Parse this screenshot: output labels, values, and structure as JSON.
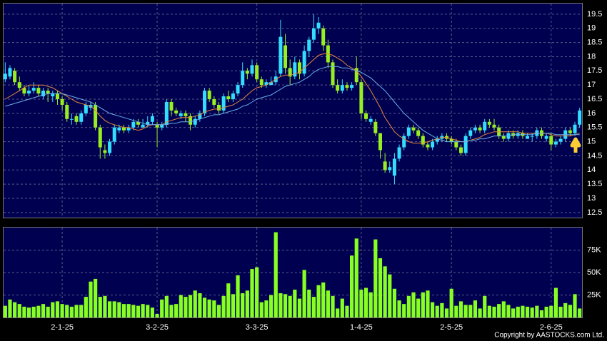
{
  "chart_data": [
    {
      "type": "candlestick",
      "up_color": "#33ddff",
      "down_color": "#99ee22",
      "grid": true,
      "ylim": [
        12.32,
        19.9
      ],
      "yticks": [
        12.5,
        13,
        13.5,
        14,
        14.5,
        15,
        15.5,
        16,
        16.5,
        17,
        17.5,
        18,
        18.5,
        19,
        19.5
      ],
      "candles": [
        [
          17.2,
          17.8,
          17.1,
          17.4
        ],
        [
          17.3,
          17.7,
          17.2,
          17.6
        ],
        [
          17.5,
          17.6,
          17.0,
          17.1
        ],
        [
          17.1,
          17.3,
          16.8,
          16.9
        ],
        [
          16.9,
          17.0,
          16.6,
          16.7
        ],
        [
          16.7,
          17.0,
          16.6,
          16.8
        ],
        [
          16.8,
          17.1,
          16.7,
          16.9
        ],
        [
          16.9,
          17.0,
          16.6,
          16.7
        ],
        [
          16.6,
          16.9,
          16.5,
          16.8
        ],
        [
          16.8,
          16.9,
          16.4,
          16.7
        ],
        [
          16.6,
          16.8,
          16.4,
          16.7
        ],
        [
          16.7,
          16.8,
          16.3,
          16.5
        ],
        [
          16.5,
          16.6,
          16.1,
          16.3
        ],
        [
          16.3,
          16.4,
          15.7,
          15.8
        ],
        [
          15.8,
          16.0,
          15.6,
          15.8
        ],
        [
          15.9,
          16.0,
          15.6,
          15.7
        ],
        [
          15.7,
          16.1,
          15.6,
          16.0
        ],
        [
          16.0,
          16.4,
          15.9,
          16.3
        ],
        [
          16.2,
          16.4,
          16.1,
          16.3
        ],
        [
          16.3,
          16.4,
          15.4,
          15.5
        ],
        [
          15.5,
          15.6,
          14.4,
          14.8
        ],
        [
          14.7,
          14.9,
          14.4,
          14.6
        ],
        [
          14.6,
          15.1,
          14.5,
          15.0
        ],
        [
          15.0,
          15.6,
          14.9,
          15.5
        ],
        [
          15.4,
          15.6,
          15.3,
          15.5
        ],
        [
          15.5,
          15.6,
          15.3,
          15.4
        ],
        [
          15.4,
          15.6,
          15.3,
          15.5
        ],
        [
          15.5,
          15.8,
          15.4,
          15.7
        ],
        [
          15.7,
          15.8,
          15.5,
          15.6
        ],
        [
          15.5,
          15.8,
          15.5,
          15.6
        ],
        [
          15.6,
          15.9,
          15.5,
          15.7
        ],
        [
          15.7,
          16.0,
          15.6,
          15.9
        ],
        [
          15.6,
          15.7,
          14.8,
          15.5
        ],
        [
          15.5,
          15.7,
          15.4,
          15.6
        ],
        [
          15.6,
          16.5,
          15.5,
          16.4
        ],
        [
          16.4,
          16.5,
          15.9,
          16.1
        ],
        [
          16.1,
          16.2,
          15.9,
          16.0
        ],
        [
          15.9,
          16.1,
          15.8,
          16.0
        ],
        [
          16.0,
          16.1,
          15.7,
          15.9
        ],
        [
          15.9,
          16.0,
          15.4,
          15.6
        ],
        [
          15.6,
          15.9,
          15.5,
          15.8
        ],
        [
          15.8,
          16.1,
          15.7,
          16.0
        ],
        [
          16.0,
          16.9,
          15.9,
          16.8
        ],
        [
          16.8,
          16.9,
          16.4,
          16.5
        ],
        [
          16.5,
          16.6,
          16.2,
          16.3
        ],
        [
          16.3,
          16.4,
          16.0,
          16.1
        ],
        [
          16.1,
          16.7,
          16.0,
          16.6
        ],
        [
          16.6,
          16.8,
          16.4,
          16.5
        ],
        [
          16.5,
          16.8,
          16.4,
          16.7
        ],
        [
          16.7,
          17.1,
          16.6,
          17.0
        ],
        [
          17.0,
          17.8,
          16.9,
          17.5
        ],
        [
          17.5,
          17.6,
          17.2,
          17.4
        ],
        [
          17.4,
          17.9,
          17.3,
          17.7
        ],
        [
          17.7,
          17.8,
          17.1,
          17.2
        ],
        [
          17.2,
          17.3,
          16.9,
          17.0
        ],
        [
          17.0,
          17.2,
          16.9,
          17.1
        ],
        [
          17.0,
          17.3,
          17.0,
          17.1
        ],
        [
          17.1,
          17.5,
          17.0,
          17.3
        ],
        [
          17.4,
          19.3,
          17.3,
          18.7
        ],
        [
          18.4,
          18.8,
          17.4,
          17.6
        ],
        [
          17.6,
          17.9,
          17.0,
          17.3
        ],
        [
          17.3,
          18.0,
          17.2,
          17.8
        ],
        [
          17.8,
          17.9,
          17.2,
          17.4
        ],
        [
          17.4,
          18.4,
          17.3,
          18.2
        ],
        [
          18.2,
          18.7,
          18.0,
          18.6
        ],
        [
          18.6,
          19.5,
          18.5,
          19.0
        ],
        [
          19.0,
          19.4,
          18.8,
          19.2
        ],
        [
          19.0,
          19.1,
          18.2,
          18.4
        ],
        [
          18.4,
          18.6,
          17.6,
          17.8
        ],
        [
          17.8,
          17.9,
          16.9,
          17.0
        ],
        [
          17.0,
          17.2,
          16.7,
          16.8
        ],
        [
          16.8,
          17.2,
          16.7,
          17.0
        ],
        [
          17.0,
          17.1,
          16.8,
          16.9
        ],
        [
          16.9,
          17.1,
          16.8,
          17.0
        ],
        [
          17.6,
          18.0,
          17.0,
          17.1
        ],
        [
          17.1,
          17.2,
          15.8,
          16.0
        ],
        [
          16.0,
          16.1,
          15.7,
          15.8
        ],
        [
          15.7,
          15.9,
          15.6,
          15.8
        ],
        [
          15.7,
          15.8,
          15.2,
          15.3
        ],
        [
          15.3,
          15.3,
          14.4,
          14.7
        ],
        [
          14.3,
          14.6,
          13.9,
          14.0
        ],
        [
          14.0,
          14.3,
          13.9,
          14.1
        ],
        [
          13.8,
          14.6,
          13.5,
          14.4
        ],
        [
          14.4,
          14.9,
          14.3,
          14.8
        ],
        [
          14.8,
          15.3,
          14.7,
          15.2
        ],
        [
          15.2,
          15.6,
          15.1,
          15.5
        ],
        [
          15.5,
          15.6,
          15.3,
          15.4
        ],
        [
          15.4,
          15.5,
          15.1,
          15.2
        ],
        [
          15.2,
          15.3,
          14.8,
          14.9
        ],
        [
          14.9,
          15.0,
          14.7,
          14.8
        ],
        [
          14.8,
          15.1,
          14.7,
          15.0
        ],
        [
          15.0,
          15.2,
          14.9,
          15.1
        ],
        [
          15.1,
          15.3,
          15.0,
          15.2
        ],
        [
          15.2,
          15.3,
          15.0,
          15.1
        ],
        [
          15.1,
          15.2,
          14.9,
          15.0
        ],
        [
          15.0,
          15.1,
          14.7,
          14.8
        ],
        [
          14.8,
          14.9,
          14.5,
          14.6
        ],
        [
          14.6,
          15.3,
          14.5,
          15.2
        ],
        [
          15.2,
          15.5,
          15.1,
          15.4
        ],
        [
          15.4,
          15.6,
          15.3,
          15.5
        ],
        [
          15.5,
          15.6,
          15.3,
          15.4
        ],
        [
          15.4,
          15.8,
          15.3,
          15.7
        ],
        [
          15.7,
          15.8,
          15.5,
          15.6
        ],
        [
          15.6,
          15.8,
          15.4,
          15.5
        ],
        [
          15.5,
          15.6,
          15.1,
          15.2
        ],
        [
          15.2,
          15.3,
          15.0,
          15.1
        ],
        [
          15.1,
          15.4,
          15.0,
          15.3
        ],
        [
          15.3,
          15.4,
          15.1,
          15.2
        ],
        [
          15.2,
          15.4,
          15.1,
          15.3
        ],
        [
          15.3,
          15.4,
          15.1,
          15.2
        ],
        [
          15.1,
          15.3,
          15.1,
          15.2
        ],
        [
          15.2,
          15.3,
          15.0,
          15.2
        ],
        [
          15.2,
          15.5,
          15.1,
          15.4
        ],
        [
          15.4,
          15.5,
          15.1,
          15.2
        ],
        [
          15.1,
          15.3,
          15.0,
          15.2
        ],
        [
          15.2,
          15.3,
          14.7,
          14.9
        ],
        [
          14.9,
          15.1,
          14.8,
          15.0
        ],
        [
          15.0,
          15.2,
          14.9,
          15.1
        ],
        [
          15.1,
          15.5,
          15.0,
          15.4
        ],
        [
          15.4,
          15.5,
          15.2,
          15.3
        ],
        [
          15.3,
          15.7,
          15.2,
          15.6
        ],
        [
          15.6,
          16.2,
          15.5,
          16.1
        ]
      ],
      "series": [
        {
          "color": "#e8883a",
          "values": [
            16.5,
            16.6,
            16.7,
            16.8,
            16.9,
            17.0,
            17.0,
            17.0,
            17.0,
            16.95,
            16.9,
            16.8,
            16.7,
            16.6,
            16.5,
            16.4,
            16.35,
            16.3,
            16.25,
            16.1,
            15.9,
            15.75,
            15.65,
            15.6,
            15.55,
            15.5,
            15.5,
            15.45,
            15.4,
            15.45,
            15.55,
            15.6,
            15.6,
            15.6,
            15.7,
            15.75,
            15.8,
            15.85,
            15.85,
            15.85,
            15.9,
            15.95,
            16.05,
            16.1,
            16.15,
            16.15,
            16.2,
            16.25,
            16.3,
            16.4,
            16.5,
            16.65,
            16.8,
            16.9,
            16.95,
            17.0,
            17.1,
            17.2,
            17.3,
            17.35,
            17.35,
            17.4,
            17.45,
            17.6,
            17.75,
            17.9,
            18.05,
            18.1,
            18.1,
            18.05,
            17.95,
            17.85,
            17.7,
            17.6,
            17.5,
            17.3,
            17.05,
            16.8,
            16.5,
            16.2,
            15.85,
            15.6,
            15.35,
            15.2,
            15.1,
            15.0,
            14.95,
            14.95,
            14.95,
            15.0,
            15.05,
            15.1,
            15.15,
            15.15,
            15.1,
            15.05,
            15.0,
            15.0,
            15.05,
            15.1,
            15.15,
            15.25,
            15.3,
            15.35,
            15.35,
            15.35,
            15.35,
            15.35,
            15.35,
            15.3,
            15.3,
            15.3,
            15.3,
            15.3,
            15.3,
            15.25,
            15.2,
            15.2,
            15.2,
            15.2,
            15.25,
            15.3
          ]
        },
        {
          "color": "#6aaee8",
          "values": [
            16.25,
            16.3,
            16.35,
            16.4,
            16.45,
            16.5,
            16.55,
            16.6,
            16.65,
            16.7,
            16.7,
            16.7,
            16.7,
            16.65,
            16.6,
            16.55,
            16.5,
            16.45,
            16.4,
            16.3,
            16.2,
            16.1,
            16.0,
            15.95,
            15.9,
            15.85,
            15.8,
            15.75,
            15.7,
            15.65,
            15.6,
            15.6,
            15.6,
            15.6,
            15.6,
            15.65,
            15.65,
            15.7,
            15.7,
            15.7,
            15.75,
            15.8,
            15.85,
            15.9,
            15.95,
            15.95,
            16.0,
            16.05,
            16.1,
            16.15,
            16.25,
            16.3,
            16.4,
            16.5,
            16.55,
            16.6,
            16.65,
            16.75,
            16.85,
            16.95,
            17.0,
            17.05,
            17.1,
            17.2,
            17.3,
            17.45,
            17.55,
            17.6,
            17.65,
            17.65,
            17.65,
            17.6,
            17.6,
            17.55,
            17.5,
            17.45,
            17.35,
            17.25,
            17.1,
            16.95,
            16.8,
            16.6,
            16.4,
            16.2,
            16.0,
            15.85,
            15.7,
            15.55,
            15.4,
            15.3,
            15.2,
            15.1,
            15.05,
            15.0,
            15.0,
            15.0,
            15.0,
            15.0,
            15.05,
            15.05,
            15.1,
            15.1,
            15.15,
            15.2,
            15.2,
            15.2,
            15.2,
            15.25,
            15.25,
            15.25,
            15.25,
            15.25,
            15.3,
            15.3,
            15.3,
            15.3,
            15.25,
            15.25,
            15.25,
            15.25,
            15.25,
            15.25
          ]
        }
      ]
    },
    {
      "type": "bar",
      "color": "#88ff22",
      "grid": true,
      "ylim": [
        0,
        101000
      ],
      "yticks": [
        {
          "value": 25000,
          "label": "25K"
        },
        {
          "value": 50000,
          "label": "50K"
        },
        {
          "value": 75000,
          "label": "75K"
        }
      ],
      "xticks": [
        {
          "value": 12,
          "label": "2-1-25"
        },
        {
          "value": 32,
          "label": "3-2-25"
        },
        {
          "value": 53,
          "label": "3-3-25"
        },
        {
          "value": 75,
          "label": "1-4-25"
        },
        {
          "value": 94,
          "label": "2-5-25"
        },
        {
          "value": 115,
          "label": "2-6-25"
        }
      ],
      "values": [
        13000,
        20000,
        17000,
        15000,
        12000,
        11000,
        12000,
        13000,
        15000,
        12000,
        17000,
        18000,
        15000,
        14000,
        12000,
        14000,
        14000,
        23000,
        40000,
        43000,
        23000,
        24000,
        18000,
        18000,
        17000,
        15000,
        15000,
        14000,
        13000,
        15000,
        14000,
        11000,
        4000,
        20000,
        24000,
        14000,
        15000,
        25000,
        23000,
        25000,
        30000,
        27000,
        22000,
        20000,
        19000,
        14000,
        24000,
        38000,
        26000,
        47000,
        27000,
        30000,
        54000,
        56000,
        17000,
        19000,
        25000,
        95000,
        27000,
        26000,
        24000,
        31000,
        21000,
        53000,
        31000,
        23000,
        36000,
        39000,
        30000,
        24000,
        10000,
        21000,
        13000,
        69000,
        88000,
        31000,
        33000,
        28000,
        87000,
        66000,
        57000,
        48000,
        32000,
        19000,
        15000,
        24000,
        28000,
        21000,
        28000,
        30000,
        17000,
        13000,
        16000,
        10000,
        32000,
        13000,
        18000,
        14000,
        14000,
        19000,
        10000,
        24000,
        13000,
        12000,
        15000,
        18000,
        14000,
        10000,
        12000,
        13000,
        12000,
        11000,
        13000,
        8000,
        12000,
        13000,
        33000,
        12000,
        16000,
        14000,
        26000,
        10000
      ]
    }
  ],
  "copyright": "Copyright by AASTOCKS.com Ltd."
}
